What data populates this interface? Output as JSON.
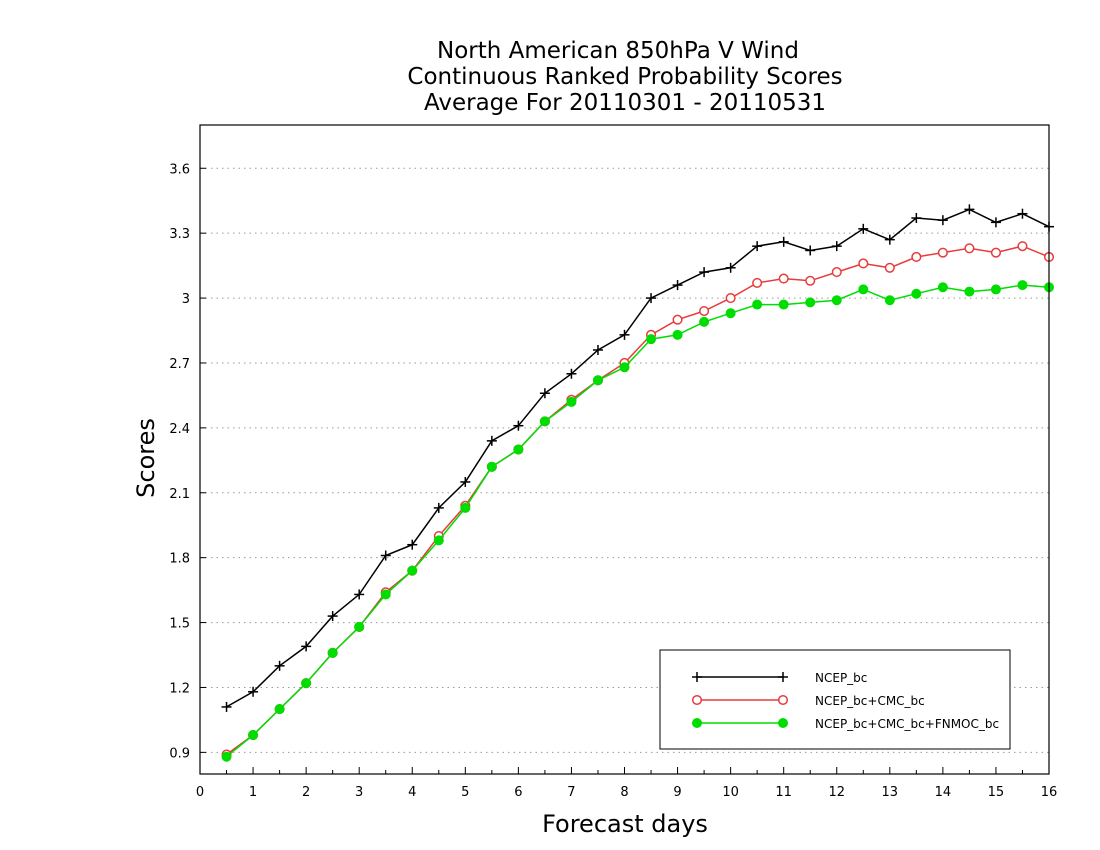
{
  "chart_data": {
    "type": "line",
    "title_lines": [
      "North American 850hPa V Wind",
      "Continuous Ranked Probability Scores",
      "Average For 20110301 - 20110531"
    ],
    "xlabel": "Forecast days",
    "ylabel": "Scores",
    "xlim": [
      0,
      16
    ],
    "ylim": [
      0.8,
      3.8
    ],
    "x_ticks": [
      0,
      1,
      2,
      3,
      4,
      5,
      6,
      7,
      8,
      9,
      10,
      11,
      12,
      13,
      14,
      15,
      16
    ],
    "y_ticks": [
      0.9,
      1.2,
      1.5,
      1.8,
      2.1,
      2.4,
      2.7,
      3,
      3.3,
      3.6
    ],
    "y_tick_labels": [
      "0.9",
      "1.2",
      "1.5",
      "1.8",
      "2.1",
      "2.4",
      "2.7",
      "3",
      "3.3",
      "3.6"
    ],
    "grid": "horizontal dotted",
    "legend_position": "bottom-right",
    "x": [
      0.5,
      1,
      1.5,
      2,
      2.5,
      3,
      3.5,
      4,
      4.5,
      5,
      5.5,
      6,
      6.5,
      7,
      7.5,
      8,
      8.5,
      9,
      9.5,
      10,
      10.5,
      11,
      11.5,
      12,
      12.5,
      13,
      13.5,
      14,
      14.5,
      15,
      15.5,
      16
    ],
    "series": [
      {
        "name": "NCEP_bc",
        "color": "#000000",
        "marker": "plus",
        "values": [
          1.11,
          1.18,
          1.3,
          1.39,
          1.53,
          1.63,
          1.81,
          1.86,
          2.03,
          2.15,
          2.34,
          2.41,
          2.56,
          2.65,
          2.76,
          2.83,
          3.0,
          3.06,
          3.12,
          3.14,
          3.24,
          3.26,
          3.22,
          3.24,
          3.32,
          3.27,
          3.37,
          3.36,
          3.41,
          3.35,
          3.39,
          3.33
        ]
      },
      {
        "name": "NCEP_bc+CMC_bc",
        "color": "#e83c3c",
        "marker": "open-circle",
        "values": [
          0.89,
          0.98,
          1.1,
          1.22,
          1.36,
          1.48,
          1.64,
          1.74,
          1.9,
          2.04,
          2.22,
          2.3,
          2.43,
          2.53,
          2.62,
          2.7,
          2.83,
          2.9,
          2.94,
          3.0,
          3.07,
          3.09,
          3.08,
          3.12,
          3.16,
          3.14,
          3.19,
          3.21,
          3.23,
          3.21,
          3.24,
          3.19
        ]
      },
      {
        "name": "NCEP_bc+CMC_bc+FNMOC_bc",
        "color": "#00dd00",
        "marker": "filled-circle",
        "values": [
          0.88,
          0.98,
          1.1,
          1.22,
          1.36,
          1.48,
          1.63,
          1.74,
          1.88,
          2.03,
          2.22,
          2.3,
          2.43,
          2.52,
          2.62,
          2.68,
          2.81,
          2.83,
          2.89,
          2.93,
          2.97,
          2.97,
          2.98,
          2.99,
          3.04,
          2.99,
          3.02,
          3.05,
          3.03,
          3.04,
          3.06,
          3.05
        ]
      }
    ]
  }
}
